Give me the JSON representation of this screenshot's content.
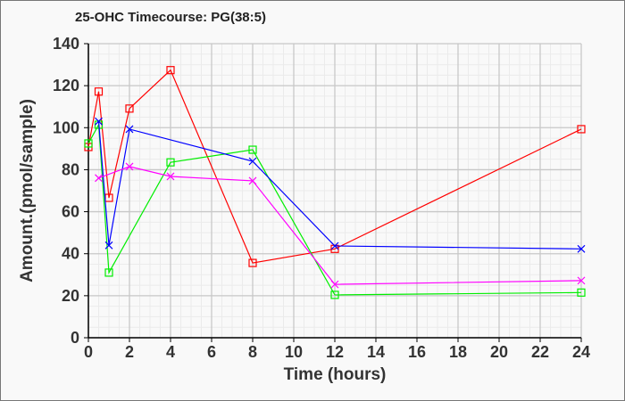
{
  "chart_data": {
    "type": "line",
    "title": "25-OHC Timecourse: PG(38:5)",
    "xlabel": "Time (hours)",
    "ylabel": "Amount.(pmol/sample)",
    "xlim": [
      0,
      24
    ],
    "ylim": [
      0,
      140
    ],
    "xticks": [
      "0",
      "2",
      "4",
      "6",
      "8",
      "10",
      "12",
      "14",
      "16",
      "18",
      "20",
      "22",
      "24"
    ],
    "yticks": [
      "0",
      "20",
      "40",
      "60",
      "80",
      "100",
      "120",
      "140"
    ],
    "grid": true,
    "series": [
      {
        "name": "red",
        "color": "#ff0000",
        "marker": "square",
        "x": [
          0,
          0.5,
          1,
          2,
          4,
          8,
          12,
          24
        ],
        "y": [
          90.8,
          117.2,
          66.6,
          109.1,
          127.4,
          35.6,
          42.3,
          99.3
        ]
      },
      {
        "name": "green",
        "color": "#00ee00",
        "marker": "square",
        "x": [
          0,
          0.5,
          1,
          4,
          8,
          12,
          24
        ],
        "y": [
          92.5,
          101.4,
          31.0,
          83.5,
          89.5,
          20.4,
          21.5
        ]
      },
      {
        "name": "blue",
        "color": "#0000ff",
        "marker": "x",
        "x": [
          0.5,
          1,
          2,
          8,
          12,
          24
        ],
        "y": [
          103.0,
          44.0,
          99.3,
          84.0,
          43.7,
          42.3
        ]
      },
      {
        "name": "magenta",
        "color": "#ff00ff",
        "marker": "x",
        "x": [
          0.5,
          2,
          4,
          8,
          12,
          24
        ],
        "y": [
          76.0,
          81.5,
          76.8,
          74.7,
          25.4,
          27.2
        ]
      }
    ]
  }
}
